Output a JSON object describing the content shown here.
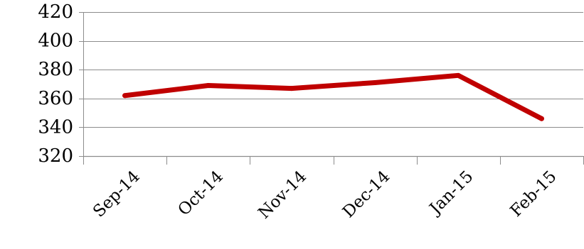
{
  "chart_data": {
    "type": "line",
    "title": "",
    "xlabel": "",
    "ylabel": "",
    "categories": [
      "Sep-14",
      "Oct-14",
      "Nov-14",
      "Dec-14",
      "Jan-15",
      "Feb-15"
    ],
    "series": [
      {
        "values": [
          362,
          369,
          367,
          371,
          376,
          346
        ]
      }
    ],
    "ylim": [
      320,
      420
    ],
    "yticks": [
      420,
      400,
      380,
      360,
      340,
      320
    ],
    "grid": true,
    "legend": "none",
    "line_color": "#c00000",
    "grid_color": "#8c8c8c"
  }
}
